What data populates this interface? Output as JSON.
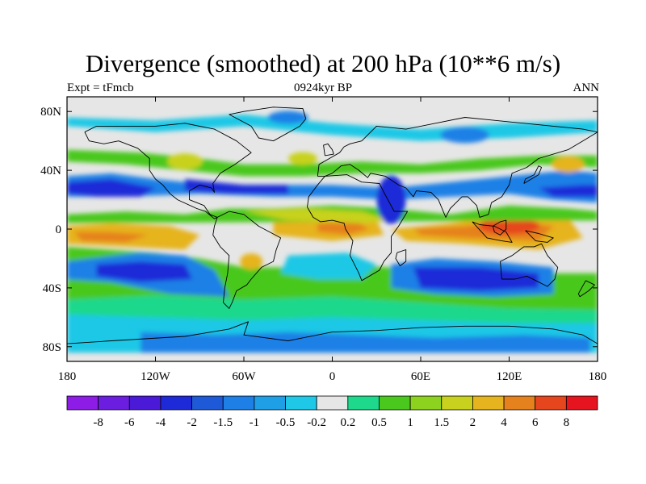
{
  "header": {
    "title": "Divergence (smoothed) at 200 hPa (10**6 m/s)",
    "left_string": "Expt = tFmcb",
    "center_string": "0924kyr BP",
    "right_string": "ANN"
  },
  "axes": {
    "lat_range": [
      -90,
      90
    ],
    "lon_range": [
      -180,
      180
    ],
    "lat_ticks": [
      {
        "value": 80,
        "label": "80N"
      },
      {
        "value": 40,
        "label": "40N"
      },
      {
        "value": 0,
        "label": "0"
      },
      {
        "value": -40,
        "label": "40S"
      },
      {
        "value": -80,
        "label": "80S"
      }
    ],
    "lon_ticks": [
      {
        "value": -180,
        "label": "180"
      },
      {
        "value": -120,
        "label": "120W"
      },
      {
        "value": -60,
        "label": "60W"
      },
      {
        "value": 0,
        "label": "0"
      },
      {
        "value": 60,
        "label": "60E"
      },
      {
        "value": 120,
        "label": "120E"
      },
      {
        "value": 180,
        "label": "180"
      }
    ]
  },
  "colorbar": {
    "colors": [
      "#8c1ce6",
      "#6b1ee0",
      "#4a1ad8",
      "#1e2ad8",
      "#1e5ad8",
      "#1e80e6",
      "#1fa0e6",
      "#1ec8e6",
      "#e6e6e6",
      "#1ed88c",
      "#4ac81e",
      "#8cd21e",
      "#c8d21e",
      "#e6b41e",
      "#e6821e",
      "#e6461e",
      "#e6141e"
    ],
    "labels": [
      "-8",
      "-6",
      "-4",
      "-2",
      "-1.5",
      "-1",
      "-0.5",
      "-0.2",
      "0.2",
      "0.5",
      "1",
      "1.5",
      "2",
      "4",
      "6",
      "8"
    ]
  },
  "map_colors": {
    "neutral": "#e6e6e6",
    "dark_blue": "#1e2ad8",
    "mid_blue": "#1e80e6",
    "light_blue": "#1ec8e6",
    "teal": "#1ed88c",
    "green": "#4ac81e",
    "yellow_green": "#c8d21e",
    "orange": "#e6b41e",
    "dark_orange": "#e6821e",
    "red": "#e6461e",
    "coast": "#000000"
  }
}
